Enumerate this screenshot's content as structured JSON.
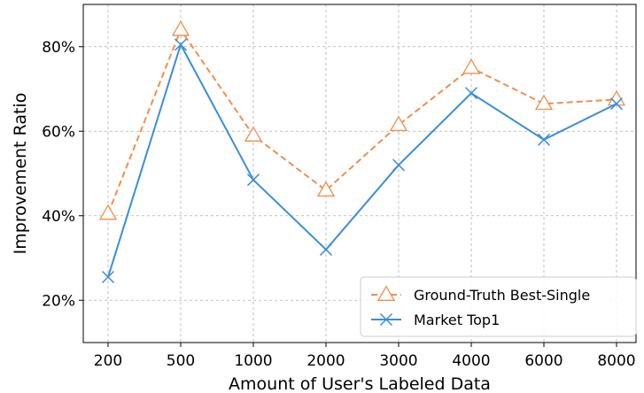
{
  "chart_data": {
    "type": "line",
    "title": "",
    "xlabel": "Amount of User's Labeled Data",
    "ylabel": "Improvement Ratio",
    "categories": [
      "200",
      "500",
      "1000",
      "2000",
      "3000",
      "4000",
      "6000",
      "8000"
    ],
    "ylim": [
      10,
      90
    ],
    "yticks": [
      20,
      40,
      60,
      80
    ],
    "ytick_labels": [
      "20%",
      "40%",
      "60%",
      "80%"
    ],
    "grid": true,
    "legend_position": "lower-right",
    "series": [
      {
        "name": "Ground-Truth Best-Single",
        "values": [
          40.5,
          84.0,
          59.0,
          46.0,
          61.5,
          75.0,
          66.5,
          67.5
        ],
        "color": "#F28E4B",
        "linestyle": "dashed",
        "marker": "triangle-open"
      },
      {
        "name": "Market Top1",
        "values": [
          25.5,
          80.5,
          48.5,
          32.0,
          52.0,
          69.0,
          58.0,
          66.5
        ],
        "color": "#3A8EDC",
        "linestyle": "solid",
        "marker": "x"
      }
    ]
  }
}
